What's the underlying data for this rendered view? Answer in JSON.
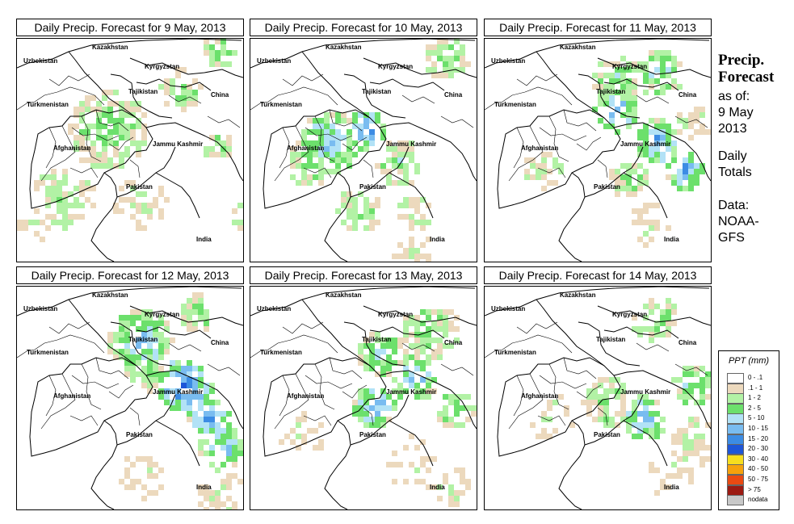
{
  "panels": [
    {
      "title": "Daily Precip. Forecast for  9 May, 2013",
      "day": 0
    },
    {
      "title": "Daily Precip. Forecast for  10 May, 2013",
      "day": 1
    },
    {
      "title": "Daily Precip. Forecast for  11 May, 2013",
      "day": 2
    },
    {
      "title": "Daily Precip. Forecast for  12 May, 2013",
      "day": 3
    },
    {
      "title": "Daily Precip. Forecast for  13 May, 2013",
      "day": 4
    },
    {
      "title": "Daily Precip. Forecast for  14 May, 2013",
      "day": 5
    }
  ],
  "countries": [
    "Kazakhstan",
    "Uzbekistan",
    "Kyrgyzstan",
    "Tajikistan",
    "Turkmenistan",
    "China",
    "Afghanistan",
    "Jammu Kashmir",
    "Pakistan",
    "India"
  ],
  "side": {
    "title_line1": "Precip.",
    "title_line2": "Forecast",
    "asof_line1": "as of:",
    "asof_line2": "9 May",
    "asof_line3": "2013",
    "totals_line1": "Daily",
    "totals_line2": "Totals",
    "data_line1": "Data:",
    "data_line2": "NOAA-",
    "data_line3": "GFS"
  },
  "legend": {
    "title": "PPT (mm)",
    "items": [
      {
        "label": "0 - .1",
        "color": "#ffffff"
      },
      {
        "label": ".1 - 1",
        "color": "#ecd9bd"
      },
      {
        "label": "1 - 2",
        "color": "#b2f2a5"
      },
      {
        "label": "2 - 5",
        "color": "#6ce06c"
      },
      {
        "label": "5 - 10",
        "color": "#b2e2f6"
      },
      {
        "label": "10 - 15",
        "color": "#79bcf0"
      },
      {
        "label": "15 - 20",
        "color": "#3c8ce4"
      },
      {
        "label": "20 - 30",
        "color": "#1e56d8"
      },
      {
        "label": "30 - 40",
        "color": "#f7de1e"
      },
      {
        "label": "40 - 50",
        "color": "#f6a20c"
      },
      {
        "label": "50 - 75",
        "color": "#ea4a12"
      },
      {
        "label": "> 75",
        "color": "#9c1a12"
      },
      {
        "label": "nodata",
        "color": "#c8c8c8"
      }
    ]
  }
}
